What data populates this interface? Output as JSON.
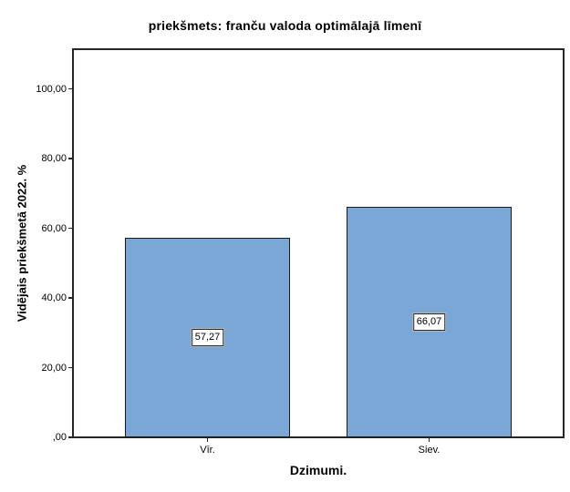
{
  "chart_data": {
    "type": "bar",
    "title": "priekšmets: franču valoda optimālajā līmenī",
    "xlabel": "Dzimumi.",
    "ylabel": "Vidējais priekšmetā 2022. %",
    "categories": [
      "Vīr.",
      "Siev."
    ],
    "values": [
      57.27,
      66.07
    ],
    "value_labels": [
      "57,27",
      "66,07"
    ],
    "yticks": [
      {
        "value": 0,
        "label": ",00"
      },
      {
        "value": 20,
        "label": "20,00"
      },
      {
        "value": 40,
        "label": "40,00"
      },
      {
        "value": 60,
        "label": "60,00"
      },
      {
        "value": 80,
        "label": "80,00"
      },
      {
        "value": 100,
        "label": "100,00"
      }
    ],
    "ylim": [
      0,
      111.4
    ],
    "grid": false,
    "legend": "none",
    "colors": {
      "bar_fill": "#7AA7D5",
      "bar_border": "#1a1a1a",
      "axis": "#262626",
      "background": "#ffffff"
    }
  }
}
